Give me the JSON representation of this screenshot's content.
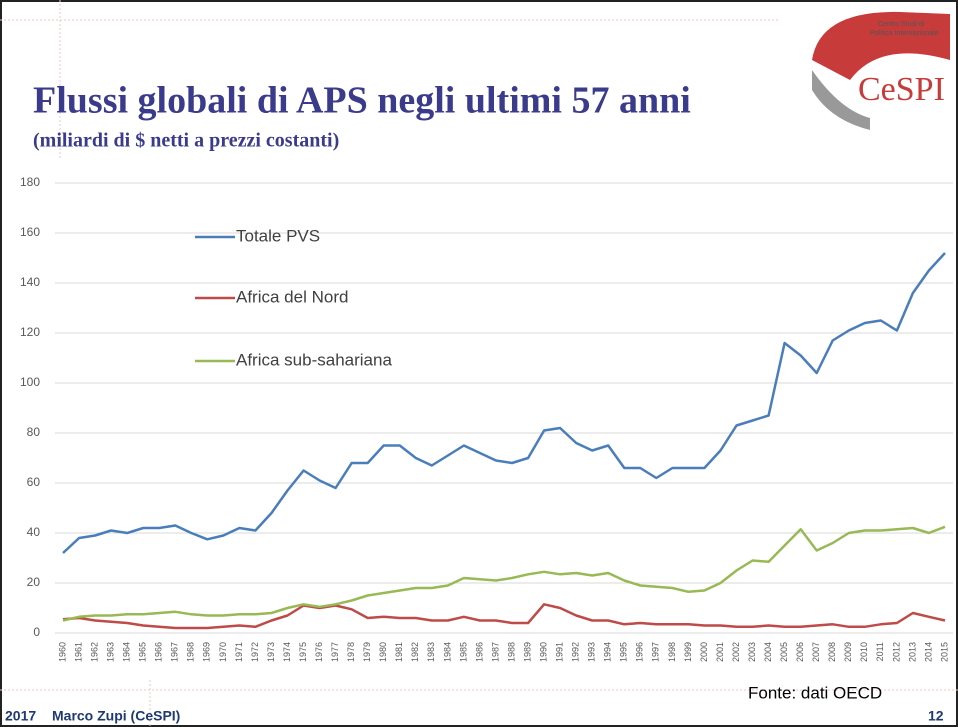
{
  "chart_data": {
    "type": "line",
    "title": "Flussi globali di APS negli ultimi 57 anni",
    "subtitle": "(miliardi di $ netti a prezzi costanti)",
    "source": "Fonte: dati OECD",
    "categories": [
      "1960",
      "1961",
      "1962",
      "1963",
      "1964",
      "1965",
      "1966",
      "1967",
      "1968",
      "1969",
      "1970",
      "1971",
      "1972",
      "1973",
      "1974",
      "1975",
      "1976",
      "1977",
      "1978",
      "1979",
      "1980",
      "1981",
      "1982",
      "1983",
      "1984",
      "1985",
      "1986",
      "1987",
      "1988",
      "1989",
      "1990",
      "1991",
      "1992",
      "1993",
      "1994",
      "1995",
      "1996",
      "1997",
      "1998",
      "1999",
      "2000",
      "2001",
      "2002",
      "2003",
      "2004",
      "2005",
      "2006",
      "2007",
      "2008",
      "2009",
      "2010",
      "2011",
      "2012",
      "2013",
      "2014",
      "2015"
    ],
    "series": [
      {
        "name": "Totale PVS",
        "color": "#4a7ebb",
        "values": [
          32,
          38,
          39,
          41,
          40,
          42,
          42,
          43,
          40,
          37.5,
          39,
          42,
          41,
          48,
          57,
          65,
          61,
          58,
          68,
          68,
          75,
          75,
          70,
          67,
          71,
          75,
          72,
          69,
          68,
          70,
          81,
          82,
          76,
          73,
          75,
          66,
          66,
          62,
          66,
          66,
          66,
          73,
          83,
          85,
          87,
          116,
          111,
          104,
          117,
          121,
          124,
          125,
          121,
          136,
          145,
          152
        ]
      },
      {
        "name": "Africa del Nord",
        "color": "#be4b48",
        "values": [
          5.5,
          6,
          5,
          4.5,
          4,
          3,
          2.5,
          2,
          2,
          2,
          2.5,
          3,
          2.5,
          5,
          7,
          11,
          10,
          11,
          9.5,
          6,
          6.5,
          6,
          6,
          5,
          5,
          6.5,
          5,
          5,
          4,
          4,
          11.5,
          10,
          7,
          5,
          5,
          3.5,
          4,
          3.5,
          3.5,
          3.5,
          3,
          3,
          2.5,
          2.5,
          3,
          2.5,
          2.5,
          3,
          3.5,
          2.5,
          2.5,
          3.5,
          4,
          8,
          6.5,
          5
        ]
      },
      {
        "name": "Africa sub-sahariana",
        "color": "#98b954",
        "values": [
          5,
          6.5,
          7,
          7,
          7.5,
          7.5,
          8,
          8.5,
          7.5,
          7,
          7,
          7.5,
          7.5,
          8,
          10,
          11.5,
          10.5,
          11.5,
          13,
          15,
          16,
          17,
          18,
          18,
          19,
          22,
          21.5,
          21,
          22,
          23.5,
          24.5,
          23.5,
          24,
          23,
          24,
          21,
          19,
          18.5,
          18,
          16.5,
          17,
          20,
          25,
          29,
          28.5,
          35,
          41.5,
          33,
          36,
          40,
          41,
          41,
          41.5,
          42,
          40,
          42.5
        ]
      }
    ],
    "ylim": [
      0,
      180
    ],
    "yticks": [
      0,
      20,
      40,
      60,
      80,
      100,
      120,
      140,
      160,
      180
    ],
    "grid": true
  },
  "footer": {
    "year": "2017",
    "author": "Marco Zupi (CeSPI)",
    "page": "12"
  },
  "logo": {
    "name": "CeSPI",
    "line1": "Centro Studi di",
    "line2": "Politica Internazionale"
  }
}
